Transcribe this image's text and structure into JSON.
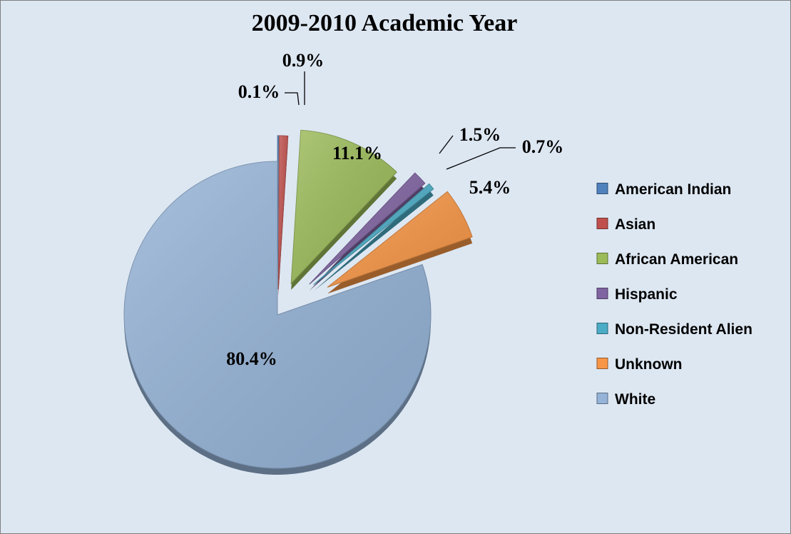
{
  "chart_data": {
    "type": "pie",
    "title": "2009-2010  Academic Year",
    "slices": [
      {
        "label": "American Indian",
        "value": 0.1,
        "display": "0.1%",
        "color": "#4f81bd"
      },
      {
        "label": "Asian",
        "value": 0.9,
        "display": "0.9%",
        "color": "#c0504d"
      },
      {
        "label": "African American",
        "value": 11.1,
        "display": "11.1%",
        "color": "#9bbb59"
      },
      {
        "label": "Hispanic",
        "value": 1.5,
        "display": "1.5%",
        "color": "#8064a2"
      },
      {
        "label": "Non-Resident Alien",
        "value": 0.7,
        "display": "0.7%",
        "color": "#4bacc6"
      },
      {
        "label": "Unknown",
        "value": 5.4,
        "display": "5.4%",
        "color": "#f79646"
      },
      {
        "label": "White",
        "value": 80.4,
        "display": "80.4%",
        "color": "#95b3d7"
      }
    ],
    "exploded": true,
    "legend_position": "right",
    "background_color": "#dde7f2"
  }
}
